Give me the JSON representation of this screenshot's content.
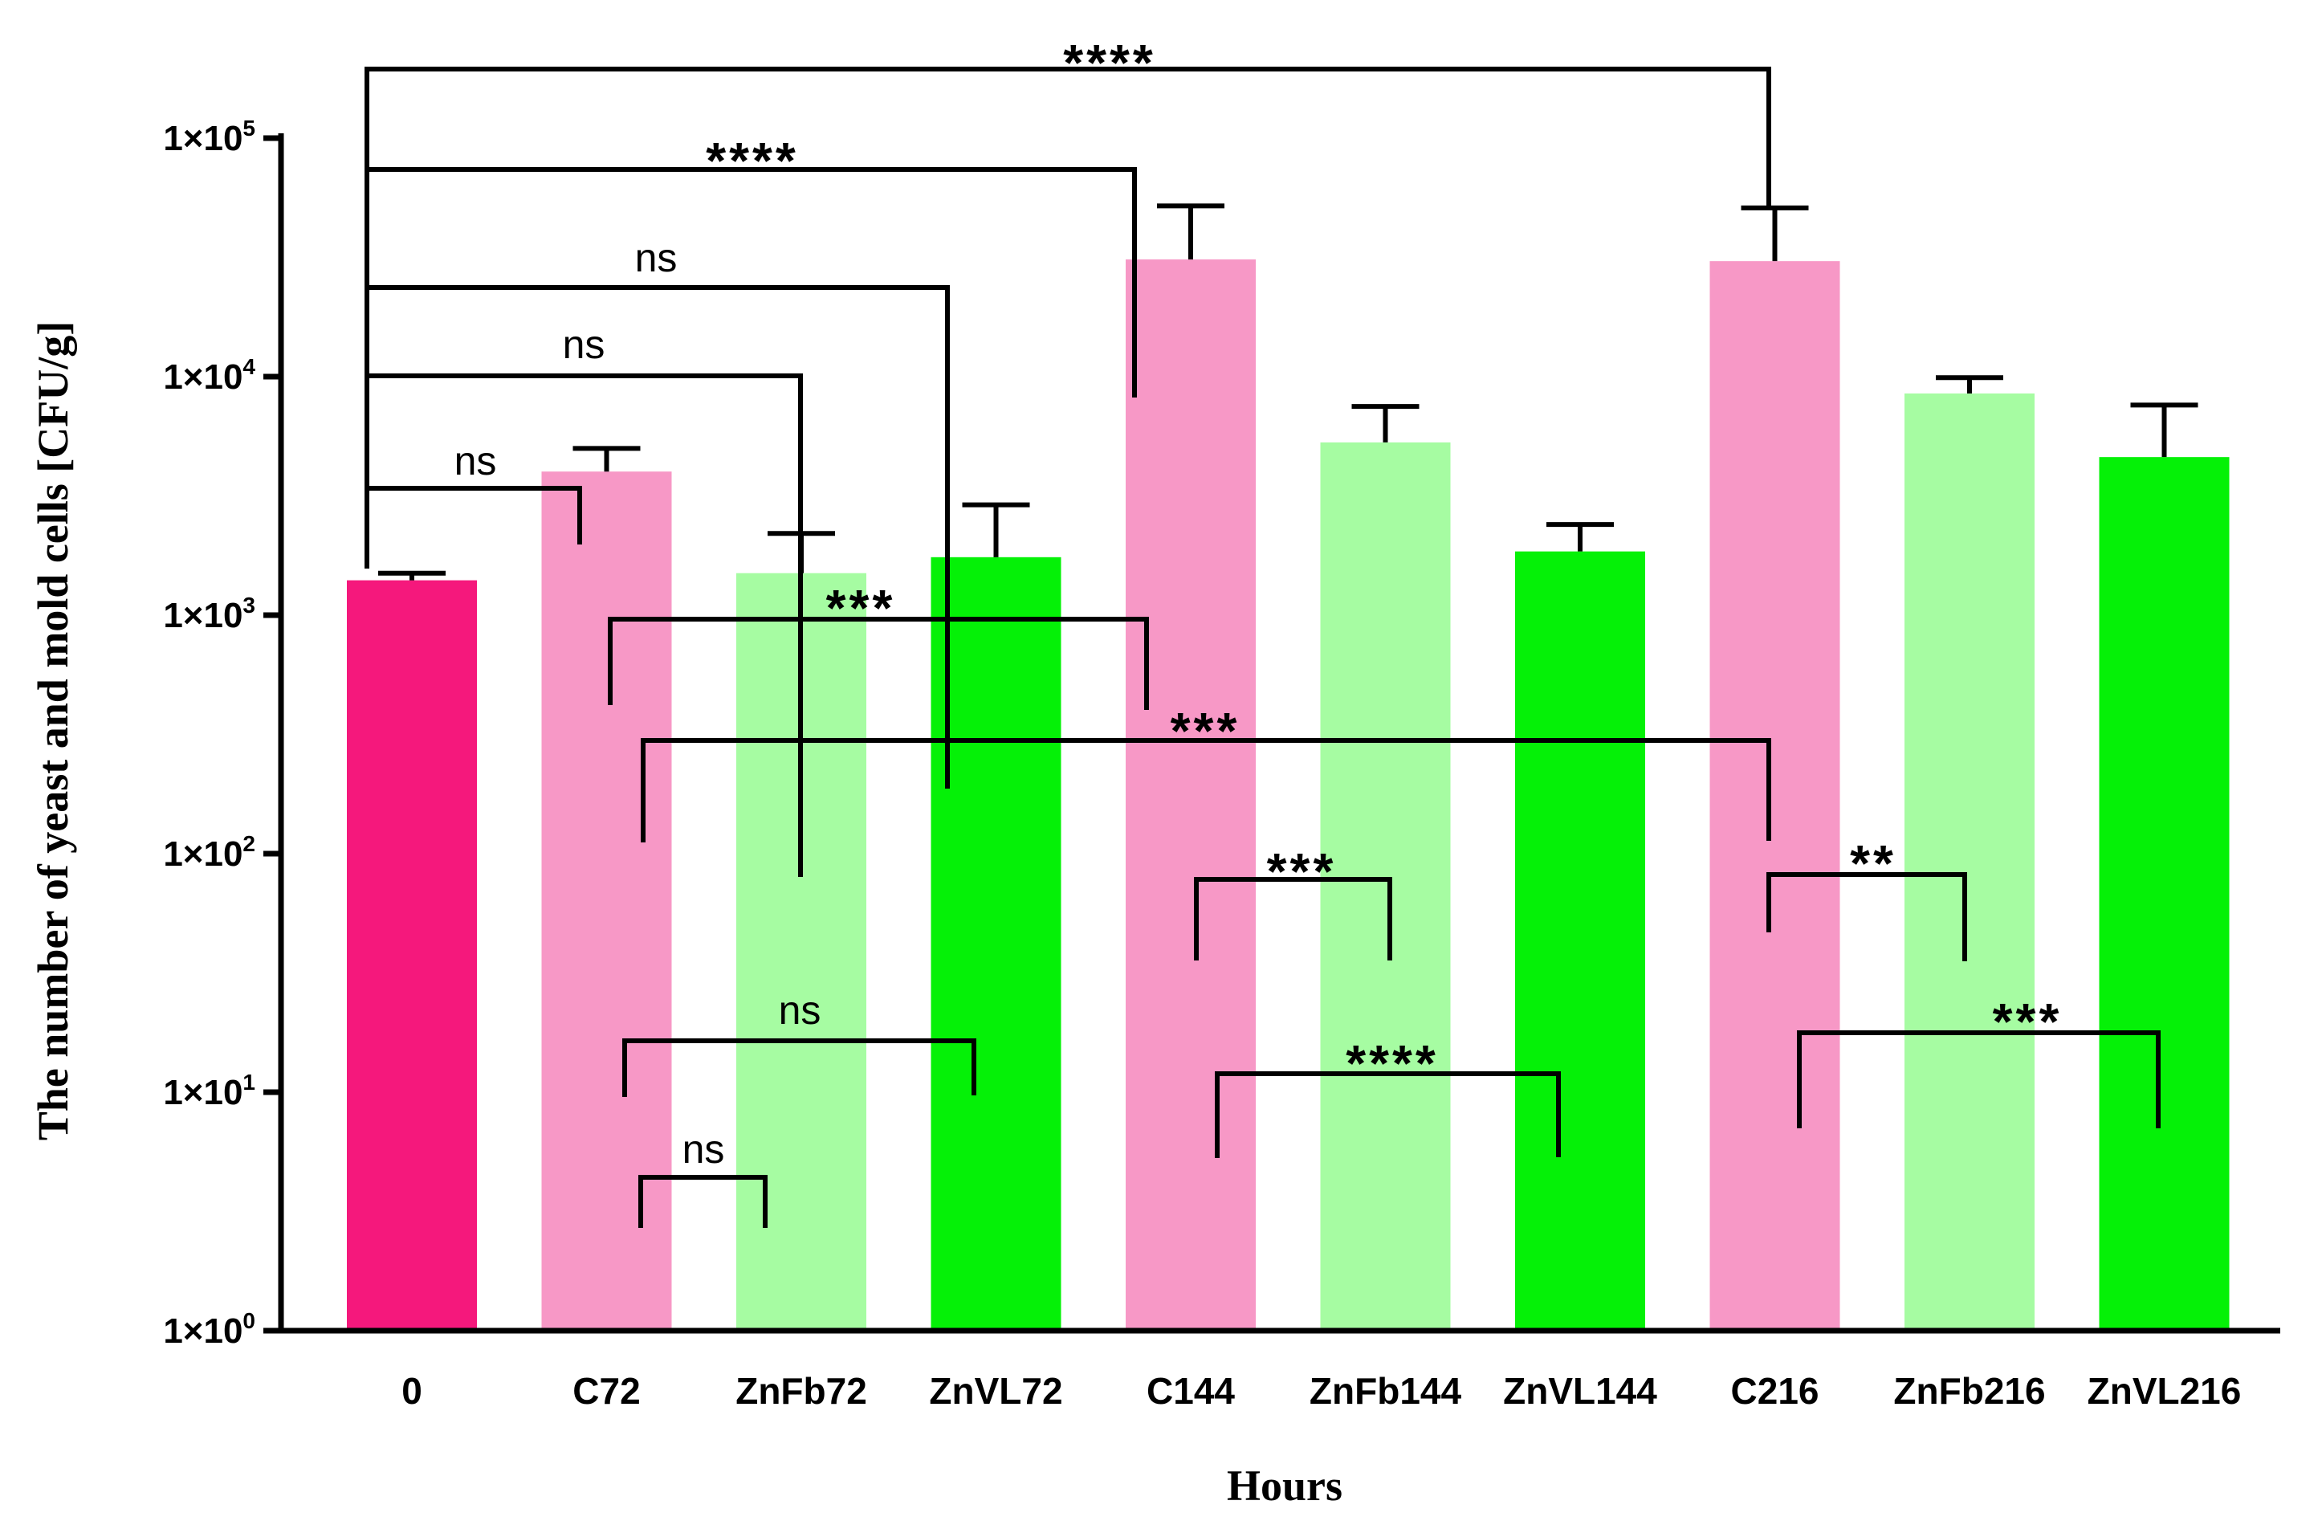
{
  "chart_data": {
    "type": "bar",
    "title": "",
    "xlabel": "Hours",
    "ylabel": "The number of yeast and mold cells [CFU/g]",
    "yscale": "log",
    "ylim": [
      1,
      100000
    ],
    "ytick_labels": [
      {
        "base": "1×10",
        "exp": "0"
      },
      {
        "base": "1×10",
        "exp": "1"
      },
      {
        "base": "1×10",
        "exp": "2"
      },
      {
        "base": "1×10",
        "exp": "3"
      },
      {
        "base": "1×10",
        "exp": "4"
      },
      {
        "base": "1×10",
        "exp": "5"
      }
    ],
    "categories": [
      "0",
      "C72",
      "ZnFb72",
      "ZnVL72",
      "C144",
      "ZnFb144",
      "ZnVL144",
      "C216",
      "ZnFb216",
      "ZnVL216"
    ],
    "values": [
      1400,
      4000,
      1500,
      1750,
      31000,
      5300,
      1850,
      30500,
      8500,
      4600
    ],
    "errors": [
      1500,
      5000,
      2200,
      2900,
      52000,
      7500,
      2400,
      51000,
      9900,
      7600
    ],
    "colors": [
      "#f5187c",
      "#f798c6",
      "#a6fca2",
      "#05f107",
      "#f798c6",
      "#a6fca2",
      "#05f107",
      "#f798c6",
      "#a6fca2",
      "#05f107"
    ],
    "grid": false,
    "legend": "none",
    "comparisons": [
      {
        "a": "0",
        "b": "C216",
        "label": "****"
      },
      {
        "a": "0",
        "b": "C144",
        "label": "****"
      },
      {
        "a": "0",
        "b": "ZnVL72",
        "label": "ns"
      },
      {
        "a": "0",
        "b": "ZnFb72",
        "label": "ns"
      },
      {
        "a": "0",
        "b": "C72",
        "label": "ns"
      },
      {
        "a": "C72",
        "b": "C144",
        "label": "***"
      },
      {
        "a": "C72",
        "b": "C216",
        "label": "***"
      },
      {
        "a": "C144",
        "b": "ZnFb144",
        "label": "***"
      },
      {
        "a": "C216",
        "b": "ZnFb216",
        "label": "**"
      },
      {
        "a": "C72",
        "b": "ZnVL72",
        "label": "ns"
      },
      {
        "a": "C144",
        "b": "ZnVL144",
        "label": "****"
      },
      {
        "a": "C216",
        "b": "ZnVL216",
        "label": "***"
      },
      {
        "a": "C72",
        "b": "ZnFb72",
        "label": "ns"
      }
    ]
  }
}
